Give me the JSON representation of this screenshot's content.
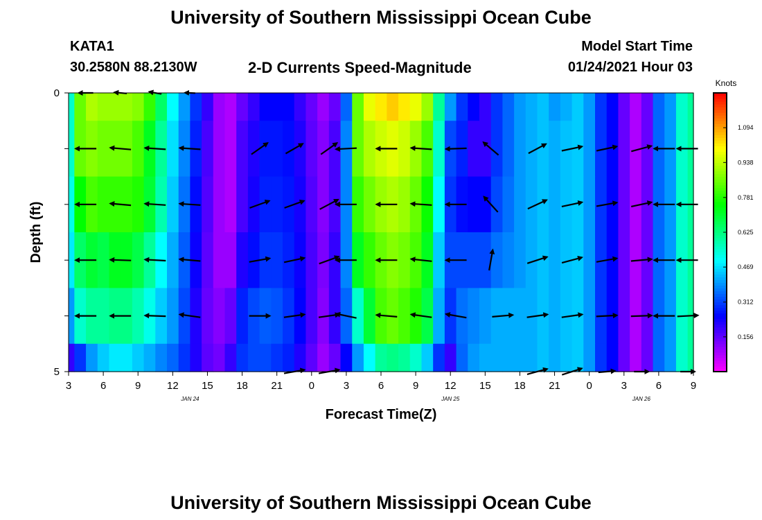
{
  "header": {
    "main_title": "University of Southern Mississippi Ocean Cube",
    "station": "KATA1",
    "coords": "30.2580N 88.2130W",
    "plot_title": "2-D Currents Speed-Magnitude",
    "model_label": "Model Start Time",
    "model_time": "01/24/2021 Hour 03",
    "footer_title": "University of Southern Mississippi Ocean Cube"
  },
  "chart_data": {
    "type": "heatmap",
    "title": "2-D Currents Speed-Magnitude",
    "xlabel": "Forecast Time(Z)",
    "ylabel": "Depth (ft)",
    "x_tick_labels": [
      "3",
      "6",
      "9",
      "12",
      "15",
      "18",
      "21",
      "0",
      "3",
      "6",
      "9",
      "12",
      "15",
      "18",
      "21",
      "0",
      "3",
      "6",
      "9"
    ],
    "date_labels": [
      {
        "text": "JAN 24",
        "at_tick_index": 3.5
      },
      {
        "text": "JAN 25",
        "at_tick_index": 11
      },
      {
        "text": "JAN 26",
        "at_tick_index": 16.5
      }
    ],
    "y_range": [
      0,
      5
    ],
    "y_tick_labels": [
      "0",
      "5"
    ],
    "time_range_hours": [
      3,
      57
    ],
    "depth_levels_ft": [
      0,
      1,
      2,
      3,
      4,
      5
    ],
    "colorbar": {
      "unit": "Knots",
      "range": [
        0,
        1.25
      ],
      "tick_labels": [
        "1.094",
        "0.938",
        "0.781",
        "0.625",
        "0.469",
        "0.312",
        "0.156"
      ],
      "tick_values": [
        1.094,
        0.938,
        0.781,
        0.625,
        0.469,
        0.312,
        0.156
      ],
      "colors": [
        "#ff00ff",
        "#8000ff",
        "#0000ff",
        "#0080ff",
        "#00ffff",
        "#00ff80",
        "#00ff00",
        "#80ff00",
        "#ffff00",
        "#ff8000",
        "#ff0000"
      ]
    },
    "speed_profile": {
      "hours": [
        3,
        4,
        5,
        6,
        7,
        8,
        9,
        10,
        11,
        12,
        13,
        14,
        15,
        16,
        17,
        18,
        19,
        20,
        21,
        22,
        23,
        24,
        25,
        26,
        27,
        28,
        29,
        30,
        31,
        32,
        33,
        34,
        35,
        36,
        37,
        38,
        39,
        40,
        41,
        42,
        43,
        44,
        45,
        46,
        47,
        48,
        49,
        50,
        51,
        52,
        53,
        54,
        55,
        56,
        57
      ],
      "level_0ft": [
        0.55,
        0.85,
        0.92,
        0.9,
        0.9,
        0.9,
        0.88,
        0.8,
        0.65,
        0.5,
        0.4,
        0.3,
        0.2,
        0.1,
        0.08,
        0.15,
        0.2,
        0.25,
        0.25,
        0.25,
        0.2,
        0.15,
        0.1,
        0.15,
        0.35,
        0.85,
        0.98,
        1.02,
        1.05,
        1.02,
        0.98,
        0.9,
        0.6,
        0.4,
        0.3,
        0.25,
        0.2,
        0.3,
        0.35,
        0.4,
        0.42,
        0.44,
        0.4,
        0.42,
        0.45,
        0.4,
        0.3,
        0.25,
        0.15,
        0.08,
        0.15,
        0.35,
        0.4,
        0.55,
        0.6
      ],
      "level_1ft": [
        0.55,
        0.85,
        0.88,
        0.86,
        0.86,
        0.86,
        0.82,
        0.72,
        0.6,
        0.47,
        0.38,
        0.28,
        0.18,
        0.1,
        0.08,
        0.18,
        0.22,
        0.27,
        0.27,
        0.26,
        0.22,
        0.16,
        0.12,
        0.18,
        0.38,
        0.85,
        0.92,
        0.95,
        0.97,
        0.95,
        0.9,
        0.82,
        0.55,
        0.32,
        0.28,
        0.2,
        0.2,
        0.3,
        0.35,
        0.4,
        0.42,
        0.44,
        0.42,
        0.44,
        0.45,
        0.4,
        0.3,
        0.25,
        0.15,
        0.08,
        0.15,
        0.35,
        0.4,
        0.55,
        0.6
      ],
      "level_2ft": [
        0.52,
        0.75,
        0.82,
        0.8,
        0.8,
        0.8,
        0.78,
        0.7,
        0.58,
        0.45,
        0.36,
        0.26,
        0.17,
        0.1,
        0.08,
        0.18,
        0.23,
        0.28,
        0.28,
        0.27,
        0.23,
        0.17,
        0.12,
        0.18,
        0.38,
        0.8,
        0.86,
        0.9,
        0.92,
        0.9,
        0.85,
        0.76,
        0.5,
        0.3,
        0.26,
        0.25,
        0.25,
        0.32,
        0.36,
        0.4,
        0.42,
        0.44,
        0.42,
        0.44,
        0.45,
        0.4,
        0.3,
        0.25,
        0.15,
        0.08,
        0.15,
        0.35,
        0.4,
        0.55,
        0.6
      ],
      "level_3ft": [
        0.48,
        0.65,
        0.7,
        0.68,
        0.72,
        0.72,
        0.68,
        0.6,
        0.5,
        0.42,
        0.34,
        0.24,
        0.16,
        0.1,
        0.1,
        0.22,
        0.26,
        0.3,
        0.3,
        0.28,
        0.24,
        0.18,
        0.13,
        0.2,
        0.38,
        0.72,
        0.8,
        0.85,
        0.88,
        0.86,
        0.82,
        0.72,
        0.45,
        0.32,
        0.32,
        0.32,
        0.32,
        0.36,
        0.38,
        0.4,
        0.42,
        0.44,
        0.42,
        0.44,
        0.45,
        0.4,
        0.3,
        0.25,
        0.15,
        0.08,
        0.15,
        0.35,
        0.4,
        0.55,
        0.6
      ],
      "level_4ft": [
        0.4,
        0.55,
        0.6,
        0.6,
        0.62,
        0.62,
        0.58,
        0.52,
        0.45,
        0.4,
        0.32,
        0.22,
        0.15,
        0.12,
        0.15,
        0.28,
        0.32,
        0.34,
        0.33,
        0.3,
        0.25,
        0.18,
        0.12,
        0.2,
        0.35,
        0.55,
        0.7,
        0.82,
        0.85,
        0.82,
        0.78,
        0.68,
        0.42,
        0.3,
        0.36,
        0.38,
        0.4,
        0.42,
        0.42,
        0.42,
        0.42,
        0.44,
        0.42,
        0.44,
        0.45,
        0.4,
        0.3,
        0.25,
        0.15,
        0.08,
        0.15,
        0.35,
        0.4,
        0.55,
        0.6
      ],
      "level_5ft": [
        0.2,
        0.3,
        0.4,
        0.45,
        0.48,
        0.48,
        0.45,
        0.42,
        0.38,
        0.35,
        0.3,
        0.22,
        0.16,
        0.14,
        0.2,
        0.3,
        0.32,
        0.32,
        0.3,
        0.28,
        0.22,
        0.16,
        0.1,
        0.15,
        0.25,
        0.4,
        0.5,
        0.6,
        0.62,
        0.6,
        0.55,
        0.45,
        0.3,
        0.2,
        0.35,
        0.4,
        0.42,
        0.42,
        0.42,
        0.42,
        0.42,
        0.44,
        0.42,
        0.44,
        0.45,
        0.4,
        0.3,
        0.25,
        0.15,
        0.08,
        0.15,
        0.35,
        0.4,
        0.55,
        0.6
      ]
    },
    "vectors": [
      {
        "hour": 4.5,
        "depth": 0,
        "dir": 180,
        "len": 0.7
      },
      {
        "hour": 7.5,
        "depth": 0,
        "dir": 175,
        "len": 0.6
      },
      {
        "hour": 10.5,
        "depth": 0,
        "dir": 170,
        "len": 0.6
      },
      {
        "hour": 13.5,
        "depth": 0,
        "dir": 178,
        "len": 0.5
      },
      {
        "hour": 4.5,
        "depth": 1,
        "dir": 180,
        "len": 1
      },
      {
        "hour": 7.5,
        "depth": 1,
        "dir": 175,
        "len": 1
      },
      {
        "hour": 10.5,
        "depth": 1,
        "dir": 176,
        "len": 1
      },
      {
        "hour": 13.5,
        "depth": 1,
        "dir": 176,
        "len": 1
      },
      {
        "hour": 19.5,
        "depth": 1,
        "dir": 35,
        "len": 0.95
      },
      {
        "hour": 22.5,
        "depth": 1,
        "dir": 30,
        "len": 0.95
      },
      {
        "hour": 25.5,
        "depth": 1,
        "dir": 35,
        "len": 0.95
      },
      {
        "hour": 27,
        "depth": 1,
        "dir": 183,
        "len": 1
      },
      {
        "hour": 30.5,
        "depth": 1,
        "dir": 180,
        "len": 1
      },
      {
        "hour": 33.5,
        "depth": 1,
        "dir": 176,
        "len": 1
      },
      {
        "hour": 36.5,
        "depth": 1,
        "dir": 182,
        "len": 1
      },
      {
        "hour": 39.5,
        "depth": 1,
        "dir": 140,
        "len": 0.95
      },
      {
        "hour": 43.5,
        "depth": 1,
        "dir": 28,
        "len": 0.95
      },
      {
        "hour": 46.5,
        "depth": 1,
        "dir": 12,
        "len": 1
      },
      {
        "hour": 49.5,
        "depth": 1,
        "dir": 12,
        "len": 1
      },
      {
        "hour": 52.5,
        "depth": 1,
        "dir": 15,
        "len": 1
      },
      {
        "hour": 54.5,
        "depth": 1,
        "dir": 180,
        "len": 1
      },
      {
        "hour": 56.5,
        "depth": 1,
        "dir": 180,
        "len": 1
      },
      {
        "hour": 4.5,
        "depth": 2,
        "dir": 180,
        "len": 1
      },
      {
        "hour": 7.5,
        "depth": 2,
        "dir": 175,
        "len": 1
      },
      {
        "hour": 10.5,
        "depth": 2,
        "dir": 176,
        "len": 1
      },
      {
        "hour": 13.5,
        "depth": 2,
        "dir": 176,
        "len": 1
      },
      {
        "hour": 19.5,
        "depth": 2,
        "dir": 20,
        "len": 1
      },
      {
        "hour": 22.5,
        "depth": 2,
        "dir": 20,
        "len": 1
      },
      {
        "hour": 25.5,
        "depth": 2,
        "dir": 28,
        "len": 1
      },
      {
        "hour": 27,
        "depth": 2,
        "dir": 180,
        "len": 1
      },
      {
        "hour": 30.5,
        "depth": 2,
        "dir": 180,
        "len": 1
      },
      {
        "hour": 33.5,
        "depth": 2,
        "dir": 176,
        "len": 1
      },
      {
        "hour": 36.5,
        "depth": 2,
        "dir": 180,
        "len": 1
      },
      {
        "hour": 39.5,
        "depth": 2,
        "dir": 132,
        "len": 1
      },
      {
        "hour": 43.5,
        "depth": 2,
        "dir": 25,
        "len": 1
      },
      {
        "hour": 46.5,
        "depth": 2,
        "dir": 12,
        "len": 1
      },
      {
        "hour": 49.5,
        "depth": 2,
        "dir": 10,
        "len": 1
      },
      {
        "hour": 52.5,
        "depth": 2,
        "dir": 12,
        "len": 1
      },
      {
        "hour": 54.5,
        "depth": 2,
        "dir": 180,
        "len": 1
      },
      {
        "hour": 56.5,
        "depth": 2,
        "dir": 180,
        "len": 1
      },
      {
        "hour": 4.5,
        "depth": 3,
        "dir": 180,
        "len": 1
      },
      {
        "hour": 7.5,
        "depth": 3,
        "dir": 178,
        "len": 1
      },
      {
        "hour": 10.5,
        "depth": 3,
        "dir": 177,
        "len": 1
      },
      {
        "hour": 13.5,
        "depth": 3,
        "dir": 175,
        "len": 1
      },
      {
        "hour": 19.5,
        "depth": 3,
        "dir": 10,
        "len": 1
      },
      {
        "hour": 22.5,
        "depth": 3,
        "dir": 12,
        "len": 1
      },
      {
        "hour": 25.5,
        "depth": 3,
        "dir": 20,
        "len": 1
      },
      {
        "hour": 27,
        "depth": 3,
        "dir": 180,
        "len": 1
      },
      {
        "hour": 30.5,
        "depth": 3,
        "dir": 180,
        "len": 1
      },
      {
        "hour": 33.5,
        "depth": 3,
        "dir": 174,
        "len": 1
      },
      {
        "hour": 36.5,
        "depth": 3,
        "dir": 180,
        "len": 1
      },
      {
        "hour": 39.5,
        "depth": 3,
        "dir": 80,
        "len": 1
      },
      {
        "hour": 43.5,
        "depth": 3,
        "dir": 18,
        "len": 1
      },
      {
        "hour": 46.5,
        "depth": 3,
        "dir": 15,
        "len": 1
      },
      {
        "hour": 49.5,
        "depth": 3,
        "dir": 10,
        "len": 1
      },
      {
        "hour": 52.5,
        "depth": 3,
        "dir": 5,
        "len": 1
      },
      {
        "hour": 54.5,
        "depth": 3,
        "dir": 180,
        "len": 1
      },
      {
        "hour": 56.5,
        "depth": 3,
        "dir": 180,
        "len": 1
      },
      {
        "hour": 4.5,
        "depth": 4,
        "dir": 180,
        "len": 1
      },
      {
        "hour": 7.5,
        "depth": 4,
        "dir": 180,
        "len": 1
      },
      {
        "hour": 10.5,
        "depth": 4,
        "dir": 178,
        "len": 1
      },
      {
        "hour": 13.5,
        "depth": 4,
        "dir": 172,
        "len": 1
      },
      {
        "hour": 19.5,
        "depth": 4,
        "dir": 0,
        "len": 1
      },
      {
        "hour": 22.5,
        "depth": 4,
        "dir": 8,
        "len": 1
      },
      {
        "hour": 25.5,
        "depth": 4,
        "dir": 8,
        "len": 1
      },
      {
        "hour": 27,
        "depth": 4,
        "dir": 168,
        "len": 1
      },
      {
        "hour": 30.5,
        "depth": 4,
        "dir": 175,
        "len": 1
      },
      {
        "hour": 33.5,
        "depth": 4,
        "dir": 172,
        "len": 1
      },
      {
        "hour": 36.5,
        "depth": 4,
        "dir": 170,
        "len": 1
      },
      {
        "hour": 40.5,
        "depth": 4,
        "dir": 5,
        "len": 1
      },
      {
        "hour": 43.5,
        "depth": 4,
        "dir": 8,
        "len": 1
      },
      {
        "hour": 46.5,
        "depth": 4,
        "dir": 8,
        "len": 1
      },
      {
        "hour": 49.5,
        "depth": 4,
        "dir": 3,
        "len": 1
      },
      {
        "hour": 52.5,
        "depth": 4,
        "dir": 2,
        "len": 1
      },
      {
        "hour": 54.5,
        "depth": 4,
        "dir": 180,
        "len": 1
      },
      {
        "hour": 56.5,
        "depth": 4,
        "dir": 3,
        "len": 1
      },
      {
        "hour": 22.5,
        "depth": 5,
        "dir": 10,
        "len": 1
      },
      {
        "hour": 25.5,
        "depth": 5,
        "dir": 10,
        "len": 1
      },
      {
        "hour": 43.5,
        "depth": 5,
        "dir": 15,
        "len": 1
      },
      {
        "hour": 46.5,
        "depth": 5,
        "dir": 18,
        "len": 1
      },
      {
        "hour": 49.5,
        "depth": 5,
        "dir": 5,
        "len": 0.8
      },
      {
        "hour": 52.5,
        "depth": 5,
        "dir": 0,
        "len": 0.7
      },
      {
        "hour": 56.5,
        "depth": 5,
        "dir": 0,
        "len": 0.7
      }
    ]
  }
}
